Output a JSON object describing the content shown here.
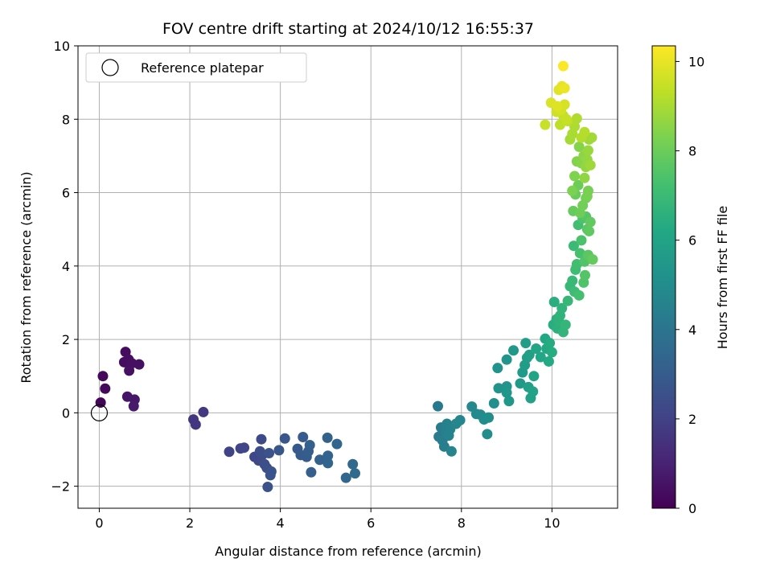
{
  "chart_data": {
    "type": "scatter",
    "title": "FOV centre drift starting at 2024/10/12 16:55:37",
    "xlabel": "Angular distance from reference (arcmin)",
    "ylabel": "Rotation from reference (arcmin)",
    "xlim": [
      -0.47,
      11.45
    ],
    "ylim": [
      -2.6,
      10.0
    ],
    "xticks": [
      0,
      2,
      4,
      6,
      8,
      10
    ],
    "yticks": [
      -2,
      0,
      2,
      4,
      6,
      8,
      10
    ],
    "grid": true,
    "legend": {
      "placement": "top-left",
      "label": "Reference platepar"
    },
    "reference_point": {
      "x": 0,
      "y": 0
    },
    "colorbar": {
      "label": "Hours from first FF file",
      "range": [
        0,
        10.35
      ],
      "ticks": [
        0,
        2,
        4,
        6,
        8,
        10
      ],
      "colormap": "viridis"
    },
    "points": [
      [
        0.03,
        0.28,
        0.15
      ],
      [
        0.08,
        1.0,
        0.2
      ],
      [
        0.13,
        0.66,
        0.25
      ],
      [
        0.58,
        1.66,
        0.3
      ],
      [
        0.55,
        1.38,
        0.35
      ],
      [
        0.65,
        1.45,
        0.38
      ],
      [
        0.72,
        1.35,
        0.42
      ],
      [
        0.88,
        1.32,
        0.45
      ],
      [
        0.66,
        1.15,
        0.48
      ],
      [
        0.62,
        0.44,
        0.6
      ],
      [
        0.78,
        0.36,
        0.68
      ],
      [
        0.76,
        0.18,
        0.75
      ],
      [
        2.08,
        -0.18,
        1.6
      ],
      [
        2.13,
        -0.32,
        1.65
      ],
      [
        2.3,
        0.02,
        1.7
      ],
      [
        2.87,
        -1.06,
        2.05
      ],
      [
        3.12,
        -0.97,
        2.1
      ],
      [
        3.2,
        -0.95,
        2.15
      ],
      [
        3.43,
        -1.2,
        2.2
      ],
      [
        3.52,
        -1.3,
        2.25
      ],
      [
        3.58,
        -0.72,
        2.3
      ],
      [
        3.6,
        -1.15,
        2.35
      ],
      [
        3.55,
        -1.05,
        2.4
      ],
      [
        3.65,
        -1.4,
        2.45
      ],
      [
        3.7,
        -1.5,
        2.5
      ],
      [
        3.72,
        -2.02,
        2.55
      ],
      [
        3.75,
        -1.1,
        2.6
      ],
      [
        3.8,
        -1.6,
        2.65
      ],
      [
        3.78,
        -1.7,
        2.7
      ],
      [
        3.97,
        -1.02,
        2.75
      ],
      [
        4.1,
        -0.7,
        2.8
      ],
      [
        4.38,
        -0.98,
        2.85
      ],
      [
        4.45,
        -1.15,
        2.9
      ],
      [
        4.5,
        -0.66,
        2.95
      ],
      [
        4.58,
        -1.2,
        3.0
      ],
      [
        4.62,
        -1.05,
        3.05
      ],
      [
        4.65,
        -0.88,
        3.1
      ],
      [
        4.68,
        -1.62,
        3.15
      ],
      [
        4.87,
        -1.28,
        3.2
      ],
      [
        5.04,
        -0.68,
        3.25
      ],
      [
        5.05,
        -1.17,
        3.3
      ],
      [
        5.05,
        -1.37,
        3.35
      ],
      [
        5.25,
        -0.85,
        3.4
      ],
      [
        5.45,
        -1.77,
        3.45
      ],
      [
        5.6,
        -1.4,
        3.5
      ],
      [
        5.65,
        -1.65,
        3.55
      ],
      [
        7.48,
        0.18,
        4.2
      ],
      [
        7.5,
        -0.65,
        4.25
      ],
      [
        7.55,
        -0.4,
        4.3
      ],
      [
        7.58,
        -0.75,
        4.35
      ],
      [
        7.62,
        -0.92,
        4.4
      ],
      [
        7.65,
        -0.52,
        4.45
      ],
      [
        7.68,
        -0.3,
        4.5
      ],
      [
        7.72,
        -0.62,
        4.55
      ],
      [
        7.75,
        -0.45,
        4.6
      ],
      [
        7.78,
        -1.05,
        4.65
      ],
      [
        7.88,
        -0.3,
        4.7
      ],
      [
        7.97,
        -0.2,
        4.75
      ],
      [
        8.23,
        0.17,
        4.8
      ],
      [
        8.33,
        -0.03,
        4.85
      ],
      [
        8.42,
        -0.05,
        4.9
      ],
      [
        8.5,
        -0.18,
        4.95
      ],
      [
        8.57,
        -0.58,
        5.0
      ],
      [
        8.6,
        -0.13,
        5.05
      ],
      [
        8.72,
        0.26,
        5.1
      ],
      [
        8.8,
        1.22,
        5.2
      ],
      [
        8.82,
        0.67,
        5.25
      ],
      [
        9.0,
        0.72,
        5.3
      ],
      [
        9.0,
        1.45,
        5.35
      ],
      [
        9.0,
        0.55,
        5.4
      ],
      [
        9.05,
        0.32,
        5.45
      ],
      [
        9.15,
        1.7,
        5.5
      ],
      [
        9.3,
        0.8,
        5.55
      ],
      [
        9.35,
        1.1,
        5.6
      ],
      [
        9.4,
        1.3,
        5.65
      ],
      [
        9.42,
        1.9,
        5.7
      ],
      [
        9.45,
        1.5,
        5.75
      ],
      [
        9.48,
        0.7,
        5.8
      ],
      [
        9.5,
        1.58,
        5.85
      ],
      [
        9.53,
        0.4,
        5.9
      ],
      [
        9.58,
        0.58,
        5.95
      ],
      [
        9.6,
        1.0,
        6.0
      ],
      [
        9.65,
        1.75,
        6.05
      ],
      [
        9.75,
        1.52,
        6.1
      ],
      [
        9.85,
        2.02,
        6.15
      ],
      [
        9.88,
        1.75,
        6.2
      ],
      [
        9.93,
        1.4,
        6.25
      ],
      [
        9.95,
        1.9,
        6.3
      ],
      [
        10.0,
        1.65,
        6.35
      ],
      [
        10.03,
        2.4,
        6.4
      ],
      [
        10.05,
        3.02,
        6.45
      ],
      [
        10.1,
        2.55,
        6.5
      ],
      [
        10.12,
        2.3,
        6.55
      ],
      [
        10.15,
        2.5,
        6.6
      ],
      [
        10.18,
        2.65,
        6.65
      ],
      [
        10.22,
        2.85,
        6.7
      ],
      [
        10.25,
        2.2,
        6.75
      ],
      [
        10.3,
        2.4,
        6.8
      ],
      [
        10.35,
        3.05,
        6.85
      ],
      [
        10.4,
        3.45,
        6.9
      ],
      [
        10.45,
        3.6,
        6.95
      ],
      [
        10.48,
        4.55,
        7.0
      ],
      [
        10.5,
        3.3,
        7.05
      ],
      [
        10.52,
        3.9,
        7.1
      ],
      [
        10.55,
        4.05,
        7.15
      ],
      [
        10.58,
        5.12,
        7.2
      ],
      [
        10.6,
        3.2,
        7.25
      ],
      [
        10.62,
        4.35,
        7.3
      ],
      [
        10.65,
        4.7,
        7.35
      ],
      [
        10.68,
        5.3,
        7.4
      ],
      [
        10.7,
        3.55,
        7.45
      ],
      [
        10.72,
        4.12,
        7.5
      ],
      [
        10.73,
        3.75,
        7.55
      ],
      [
        10.75,
        5.35,
        7.6
      ],
      [
        10.78,
        5.0,
        7.65
      ],
      [
        10.8,
        4.3,
        7.7
      ],
      [
        10.82,
        4.95,
        7.75
      ],
      [
        10.85,
        5.2,
        7.8
      ],
      [
        10.9,
        4.18,
        7.85
      ],
      [
        10.47,
        5.5,
        7.9
      ],
      [
        10.52,
        5.95,
        7.95
      ],
      [
        10.58,
        6.2,
        8.0
      ],
      [
        10.62,
        5.45,
        8.05
      ],
      [
        10.68,
        5.65,
        8.1
      ],
      [
        10.75,
        5.85,
        8.15
      ],
      [
        10.78,
        5.9,
        8.2
      ],
      [
        10.8,
        6.05,
        8.25
      ],
      [
        10.45,
        6.05,
        8.3
      ],
      [
        10.5,
        6.45,
        8.35
      ],
      [
        10.55,
        6.85,
        8.4
      ],
      [
        10.6,
        7.25,
        8.45
      ],
      [
        10.65,
        6.8,
        8.5
      ],
      [
        10.7,
        7.0,
        8.55
      ],
      [
        10.72,
        6.4,
        8.6
      ],
      [
        10.75,
        6.7,
        8.65
      ],
      [
        10.78,
        6.9,
        8.7
      ],
      [
        10.8,
        7.15,
        8.75
      ],
      [
        10.82,
        7.45,
        8.8
      ],
      [
        10.85,
        6.75,
        8.85
      ],
      [
        10.88,
        7.5,
        8.9
      ],
      [
        10.4,
        7.45,
        8.95
      ],
      [
        10.45,
        7.6,
        9.0
      ],
      [
        10.5,
        7.8,
        9.05
      ],
      [
        10.55,
        8.02,
        9.1
      ],
      [
        10.65,
        7.5,
        9.15
      ],
      [
        10.72,
        7.65,
        9.2
      ],
      [
        10.35,
        7.95,
        9.3
      ],
      [
        10.18,
        7.85,
        9.35
      ],
      [
        10.25,
        8.1,
        9.4
      ],
      [
        10.32,
        8.0,
        9.45
      ],
      [
        9.85,
        7.85,
        9.5
      ],
      [
        10.1,
        8.2,
        9.6
      ],
      [
        10.2,
        8.25,
        9.65
      ],
      [
        10.28,
        8.4,
        9.7
      ],
      [
        9.98,
        8.45,
        9.8
      ],
      [
        10.12,
        8.35,
        9.85
      ],
      [
        10.15,
        8.8,
        9.9
      ],
      [
        10.22,
        8.9,
        10.0
      ],
      [
        10.28,
        8.85,
        10.05
      ],
      [
        10.25,
        9.45,
        10.3
      ]
    ]
  }
}
